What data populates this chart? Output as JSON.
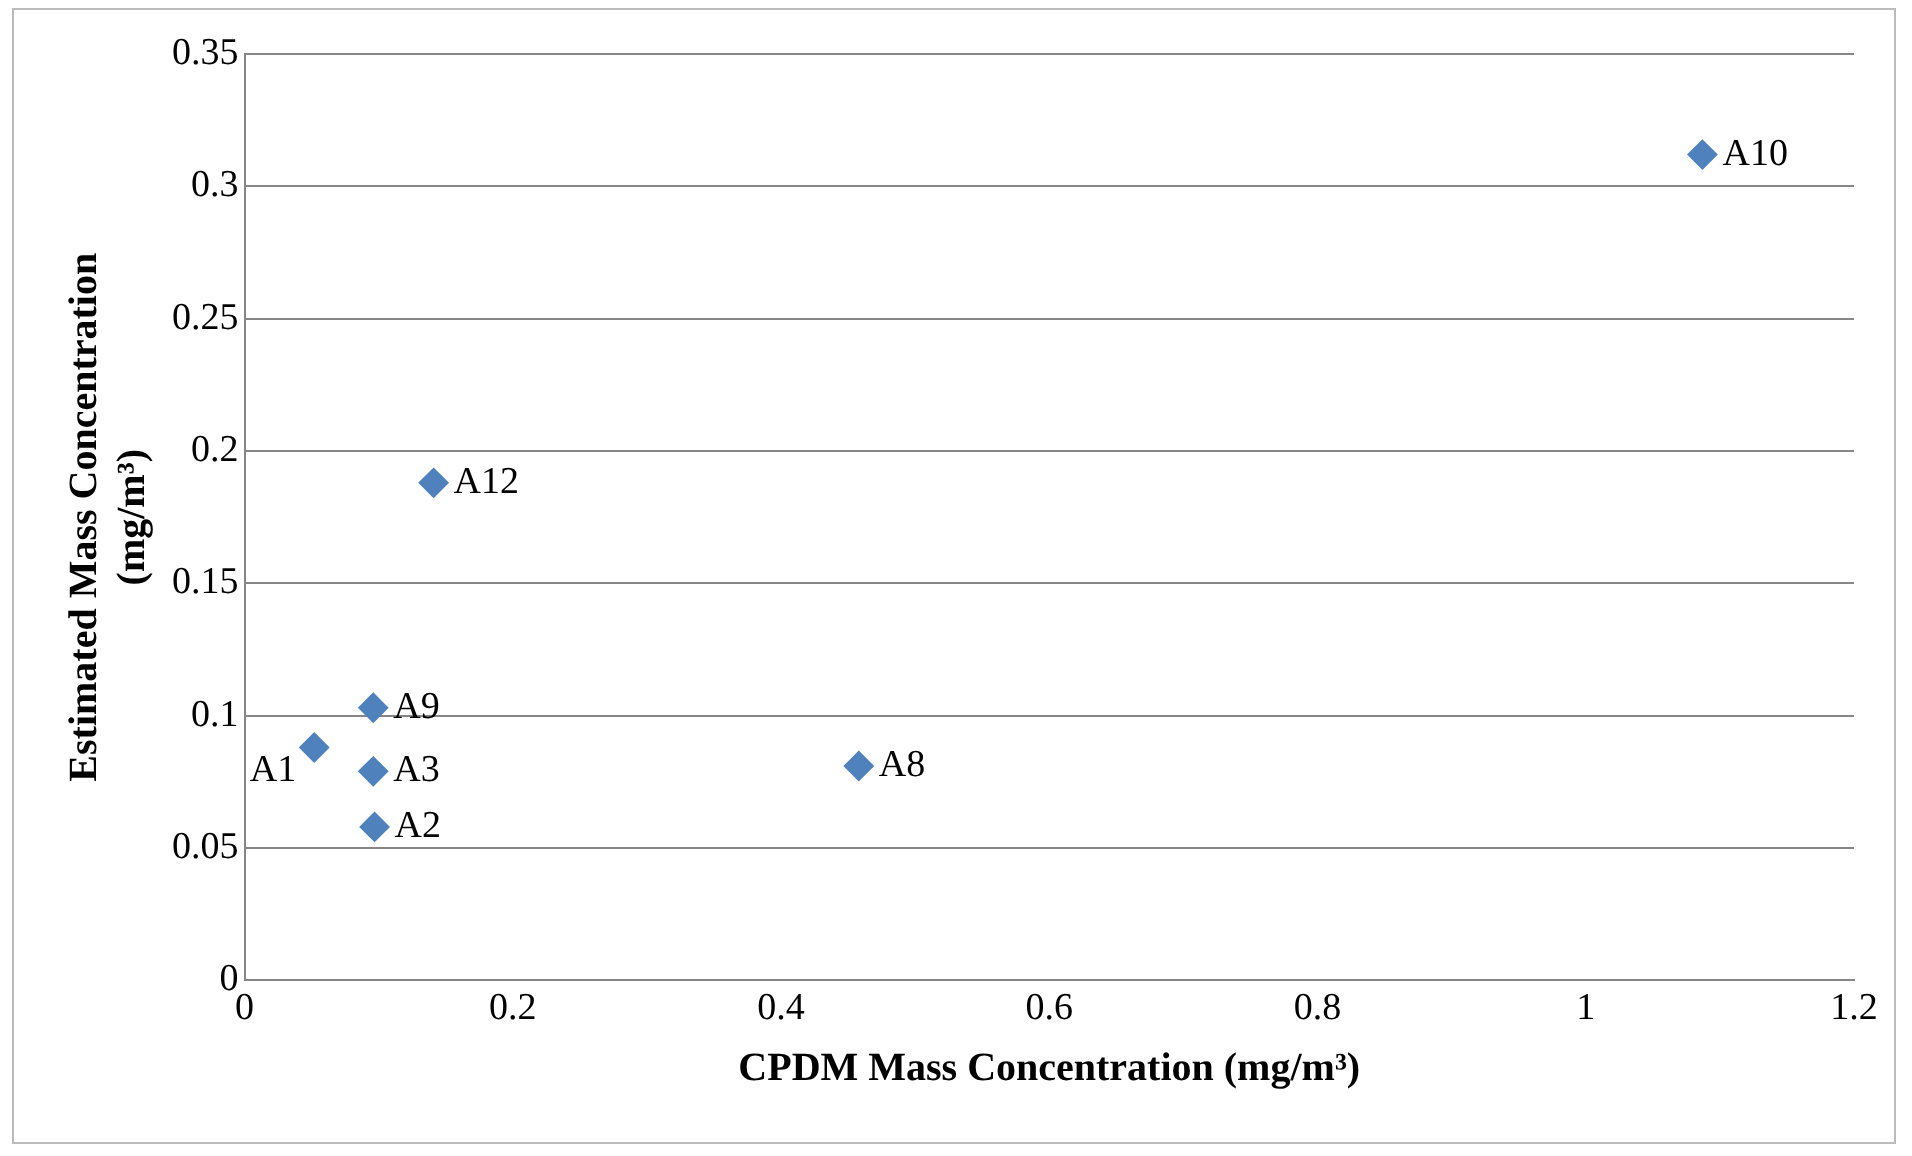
{
  "chart_data": {
    "type": "scatter",
    "xlabel": "CPDM Mass Concentration (mg/m³)",
    "ylabel": "Estimated Mass Concentration\n(mg/m³)",
    "series": [
      {
        "color": "#4f81bd",
        "x": [
          0.052,
          0.097,
          0.096,
          0.458,
          0.096,
          1.087,
          0.141
        ],
        "values": [
          0.088,
          0.058,
          0.079,
          0.081,
          0.103,
          0.312,
          0.188
        ]
      }
    ],
    "annotations": [
      {
        "text": "A1",
        "x": 0.052,
        "y": 0.088
      },
      {
        "text": "A2",
        "x": 0.097,
        "y": 0.058
      },
      {
        "text": "A3",
        "x": 0.096,
        "y": 0.079
      },
      {
        "text": "A8",
        "x": 0.458,
        "y": 0.081
      },
      {
        "text": "A9",
        "x": 0.096,
        "y": 0.103
      },
      {
        "text": "A10",
        "x": 1.087,
        "y": 0.312
      },
      {
        "text": "A12",
        "x": 0.141,
        "y": 0.188
      }
    ],
    "xlim": [
      0,
      1.2
    ],
    "xticks": [
      0,
      0.2,
      0.4,
      0.6,
      0.8,
      1,
      1.2
    ],
    "ylim": [
      0,
      0.35
    ],
    "yticks": [
      0,
      0.05,
      0.1,
      0.15,
      0.2,
      0.25,
      0.3,
      0.35
    ],
    "grid": "y",
    "legend": false,
    "marker": "diamond"
  }
}
